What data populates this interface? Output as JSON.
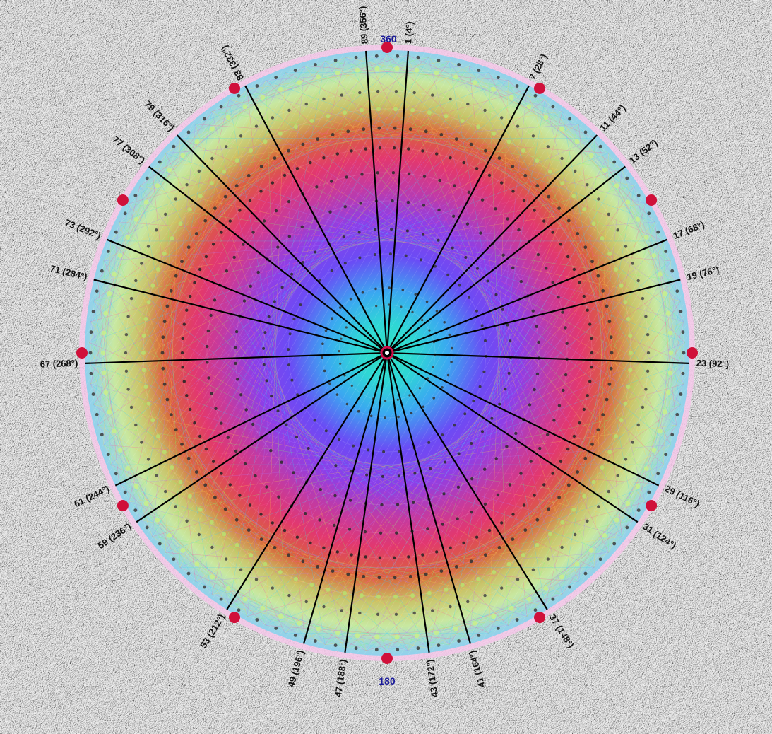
{
  "axis_labels": {
    "top": "360",
    "bottom": "180"
  },
  "rays": [
    {
      "label": "1 (4°)",
      "angle": 4
    },
    {
      "label": "7 (28°)",
      "angle": 28
    },
    {
      "label": "11 (44°)",
      "angle": 44
    },
    {
      "label": "13 (52°)",
      "angle": 52
    },
    {
      "label": "17 (68°)",
      "angle": 68
    },
    {
      "label": "19 (76°)",
      "angle": 76
    },
    {
      "label": "23 (92°)",
      "angle": 92
    },
    {
      "label": "29 (116°)",
      "angle": 116
    },
    {
      "label": "31 (124°)",
      "angle": 124
    },
    {
      "label": "37 (148°)",
      "angle": 148
    },
    {
      "label": "41 (164°)",
      "angle": 164
    },
    {
      "label": "43 (172°)",
      "angle": 172
    },
    {
      "label": "47 (188°)",
      "angle": 188
    },
    {
      "label": "49 (196°)",
      "angle": 196
    },
    {
      "label": "53 (212°)",
      "angle": 212
    },
    {
      "label": "59 (236°)",
      "angle": 236
    },
    {
      "label": "61 (244°)",
      "angle": 244
    },
    {
      "label": "67 (268°)",
      "angle": 268
    },
    {
      "label": "71 (284°)",
      "angle": 284
    },
    {
      "label": "73 (292°)",
      "angle": 292
    },
    {
      "label": "77 (308°)",
      "angle": 308
    },
    {
      "label": "79 (316°)",
      "angle": 316
    },
    {
      "label": "83 (332°)",
      "angle": 332
    },
    {
      "label": "89 (356°)",
      "angle": 356
    }
  ],
  "red_marker_angles": [
    0,
    30,
    60,
    90,
    120,
    150,
    180,
    210,
    240,
    270,
    300,
    330
  ],
  "colors": {
    "ray": "#000000",
    "red_marker": "#d0103a",
    "center_ring": "#d0104a",
    "dots": "#3a3a3a"
  }
}
